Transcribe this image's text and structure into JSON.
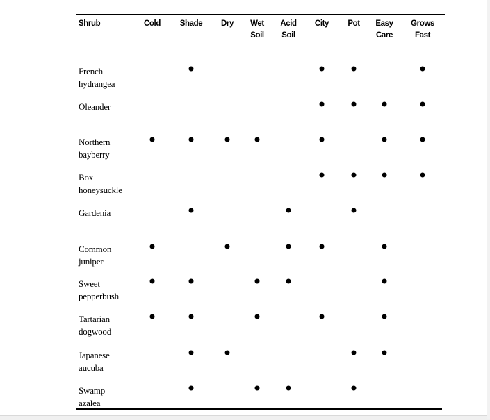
{
  "table": {
    "columns": [
      "Shrub",
      "Cold",
      "Shade",
      "Dry",
      "Wet\nSoil",
      "Acid\nSoil",
      "City",
      "Pot",
      "Easy\nCare",
      "Grows\nFast"
    ],
    "rows": [
      {
        "name": "French\nhydrangea",
        "marks": [
          "Shade",
          "City",
          "Pot",
          "Grows Fast"
        ]
      },
      {
        "name": "Oleander",
        "marks": [
          "City",
          "Pot",
          "Easy Care",
          "Grows Fast"
        ]
      },
      {
        "name": "Northern\nbayberry",
        "marks": [
          "Cold",
          "Shade",
          "Dry",
          "Wet Soil",
          "City",
          "Easy Care",
          "Grows Fast"
        ]
      },
      {
        "name": "Box\nhoneysuckle",
        "marks": [
          "City",
          "Pot",
          "Easy Care",
          "Grows Fast"
        ]
      },
      {
        "name": "Gardenia",
        "marks": [
          "Shade",
          "Acid Soil",
          "Pot"
        ]
      },
      {
        "name": "Common\njuniper",
        "marks": [
          "Cold",
          "Dry",
          "Acid Soil",
          "City",
          "Easy Care"
        ]
      },
      {
        "name": "Sweet\npepperbush",
        "marks": [
          "Cold",
          "Shade",
          "Wet Soil",
          "Acid Soil",
          "Easy Care"
        ]
      },
      {
        "name": "Tartarian\ndogwood",
        "marks": [
          "Cold",
          "Shade",
          "Wet Soil",
          "City",
          "Easy Care"
        ]
      },
      {
        "name": "Japanese\naucuba",
        "marks": [
          "Shade",
          "Dry",
          "Pot",
          "Easy Care"
        ]
      },
      {
        "name": "Swamp\nazalea",
        "marks": [
          "Shade",
          "Wet Soil",
          "Acid Soil",
          "Pot"
        ]
      }
    ]
  }
}
